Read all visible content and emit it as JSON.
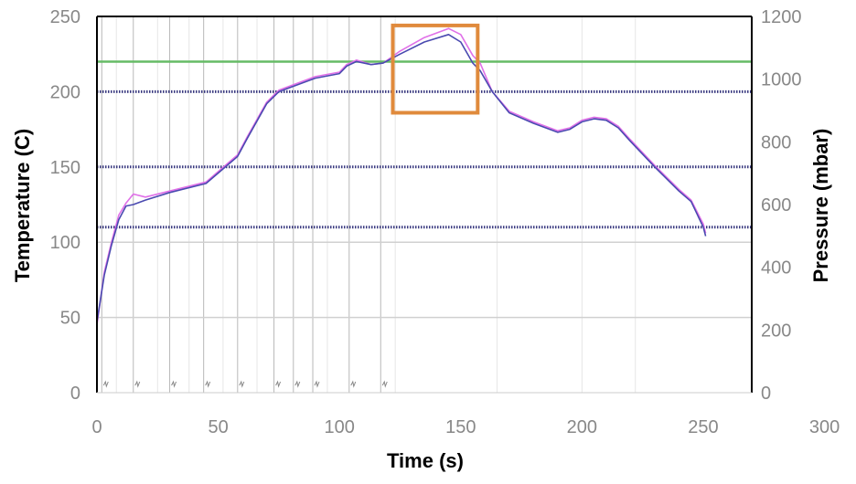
{
  "chart_data": {
    "type": "line",
    "title": "",
    "xlabel": "Time (s)",
    "ylabel": "Temperature (C)",
    "y2label": "Pressure (mbar)",
    "xlim": [
      0,
      270
    ],
    "ylim": [
      0,
      250
    ],
    "y2lim": [
      0,
      1200
    ],
    "x_ticks": [
      "0",
      "50",
      "100",
      "150",
      "200",
      "250",
      "300"
    ],
    "y_ticks": [
      "0",
      "50",
      "100",
      "150",
      "200",
      "250"
    ],
    "y2_ticks": [
      "0",
      "200",
      "400",
      "600",
      "800",
      "1000",
      "1200"
    ],
    "grid": true,
    "legend": "none",
    "series": [
      {
        "color": "#e070e8",
        "x": [
          0,
          3,
          6,
          9,
          12,
          15,
          20,
          30,
          45,
          58,
          62,
          70,
          75,
          90,
          100,
          103,
          107,
          113,
          118,
          125,
          135,
          145,
          150,
          155,
          158,
          163,
          170,
          180,
          190,
          195,
          200,
          205,
          210,
          215,
          220,
          230,
          240,
          245,
          250,
          251
        ],
        "y": [
          45,
          80,
          100,
          118,
          126,
          132,
          130,
          134,
          140,
          158,
          170,
          193,
          201,
          210,
          213,
          218,
          221,
          218,
          219,
          227,
          236,
          242,
          238,
          224,
          219,
          200,
          187,
          180,
          174,
          176,
          181,
          183,
          182,
          177,
          168,
          151,
          135,
          128,
          112,
          106
        ]
      },
      {
        "color": "#4a4ab0",
        "x": [
          0,
          3,
          6,
          9,
          12,
          15,
          20,
          30,
          45,
          58,
          62,
          70,
          75,
          90,
          100,
          103,
          107,
          113,
          118,
          125,
          135,
          145,
          150,
          155,
          158,
          163,
          170,
          180,
          190,
          195,
          200,
          205,
          210,
          215,
          220,
          230,
          240,
          245,
          250,
          251
        ],
        "y": [
          47,
          78,
          98,
          115,
          124,
          125,
          128,
          133,
          139,
          157,
          169,
          192,
          200,
          209,
          212,
          217,
          220,
          218,
          219,
          225,
          233,
          238,
          233,
          219,
          214,
          200,
          186,
          179,
          173,
          175,
          180,
          182,
          181,
          176,
          167,
          150,
          134,
          127,
          110,
          104
        ]
      }
    ],
    "reference_lines": [
      {
        "axis": "y",
        "value": 220,
        "color": "#66bb66",
        "style": "solid"
      },
      {
        "axis": "y",
        "value": 200,
        "color": "#3a3a80",
        "style": "dotted"
      },
      {
        "axis": "y",
        "value": 150,
        "color": "#3a3a80",
        "style": "dotted"
      },
      {
        "axis": "y",
        "value": 110,
        "color": "#3a3a80",
        "style": "dotted"
      },
      {
        "axis": "y",
        "value": 100,
        "color": "#d0d0d0",
        "style": "solid"
      },
      {
        "axis": "y",
        "value": 50,
        "color": "#d0d0d0",
        "style": "solid"
      }
    ],
    "event_markers_x": [
      2,
      15,
      30,
      44,
      58,
      73,
      81,
      89,
      104,
      117
    ],
    "minor_gridlines_x": [
      8,
      25,
      38,
      52,
      66,
      95,
      123,
      165,
      200,
      222
    ],
    "highlight_box": {
      "x_range": [
        122,
        157
      ],
      "y_range": [
        186,
        244
      ],
      "color": "#e08a3c"
    }
  }
}
